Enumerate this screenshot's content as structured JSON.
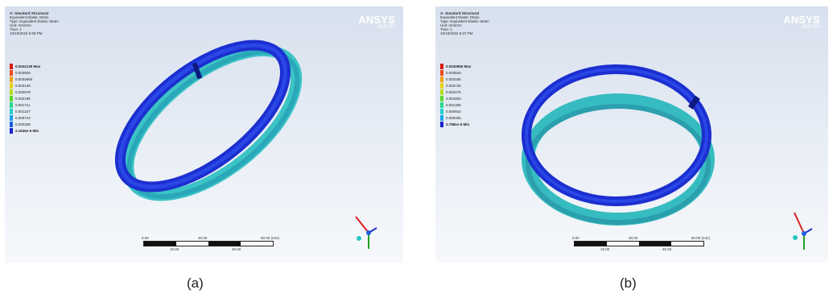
{
  "panels": [
    {
      "caption": "(a)",
      "header": [
        "A: Standard Structural",
        "Equivalent Elastic Strain",
        "Type: Equivalent Elastic Strain",
        "Unit: mm/mm",
        "Time: 1",
        "10/19/2022 5:08 PM"
      ],
      "legend": [
        {
          "label": "0.0042135 Max",
          "color": "#d81a14",
          "max": true
        },
        {
          "label": "0.003925",
          "color": "#f04a1a"
        },
        {
          "label": "0.0034660",
          "color": "#f5a014"
        },
        {
          "label": "0.003149",
          "color": "#e8d216"
        },
        {
          "label": "0.002679",
          "color": "#b4e21e"
        },
        {
          "label": "0.002195",
          "color": "#5ad62a"
        },
        {
          "label": "0.001711",
          "color": "#26d88a"
        },
        {
          "label": "0.001227",
          "color": "#22cfd2"
        },
        {
          "label": "0.000743",
          "color": "#1aa2ec"
        },
        {
          "label": "0.000259",
          "color": "#1a5ee6"
        },
        {
          "label": "2.1636e-5 Min",
          "color": "#1824c8",
          "min": true
        }
      ],
      "brand": {
        "name": "ANSYS",
        "version": "2020 R1"
      },
      "scale": {
        "top": [
          "0.00",
          "30.00",
          "60.00 (mm)"
        ],
        "bottom": [
          "15.00",
          "45.00"
        ]
      }
    },
    {
      "caption": "(b)",
      "header": [
        "A: Standard Structural",
        "Equivalent Elastic Strain",
        "Type: Equivalent Elastic Strain",
        "Unit: mm/mm",
        "Time: 1",
        "10/19/2022 5:37 PM"
      ],
      "legend": [
        {
          "label": "0.0040955 Max",
          "color": "#d81a14",
          "max": true
        },
        {
          "label": "0.003640",
          "color": "#f04a1a"
        },
        {
          "label": "0.003185",
          "color": "#f5a014"
        },
        {
          "label": "0.002730",
          "color": "#e8d216"
        },
        {
          "label": "0.002275",
          "color": "#b4e21e"
        },
        {
          "label": "0.001820",
          "color": "#5ad62a"
        },
        {
          "label": "0.001365",
          "color": "#26d88a"
        },
        {
          "label": "0.000910",
          "color": "#22cfd2"
        },
        {
          "label": "0.000455",
          "color": "#1aa2ec"
        },
        {
          "label": "2.7581e-5 Min",
          "color": "#1824c8",
          "min": true
        }
      ],
      "brand": {
        "name": "ANSYS",
        "version": "2020 R1"
      },
      "scale": {
        "top": [
          "0.00",
          "30.00",
          "60.00 (mm)"
        ],
        "bottom": [
          "15.00",
          "45.00"
        ]
      }
    }
  ]
}
